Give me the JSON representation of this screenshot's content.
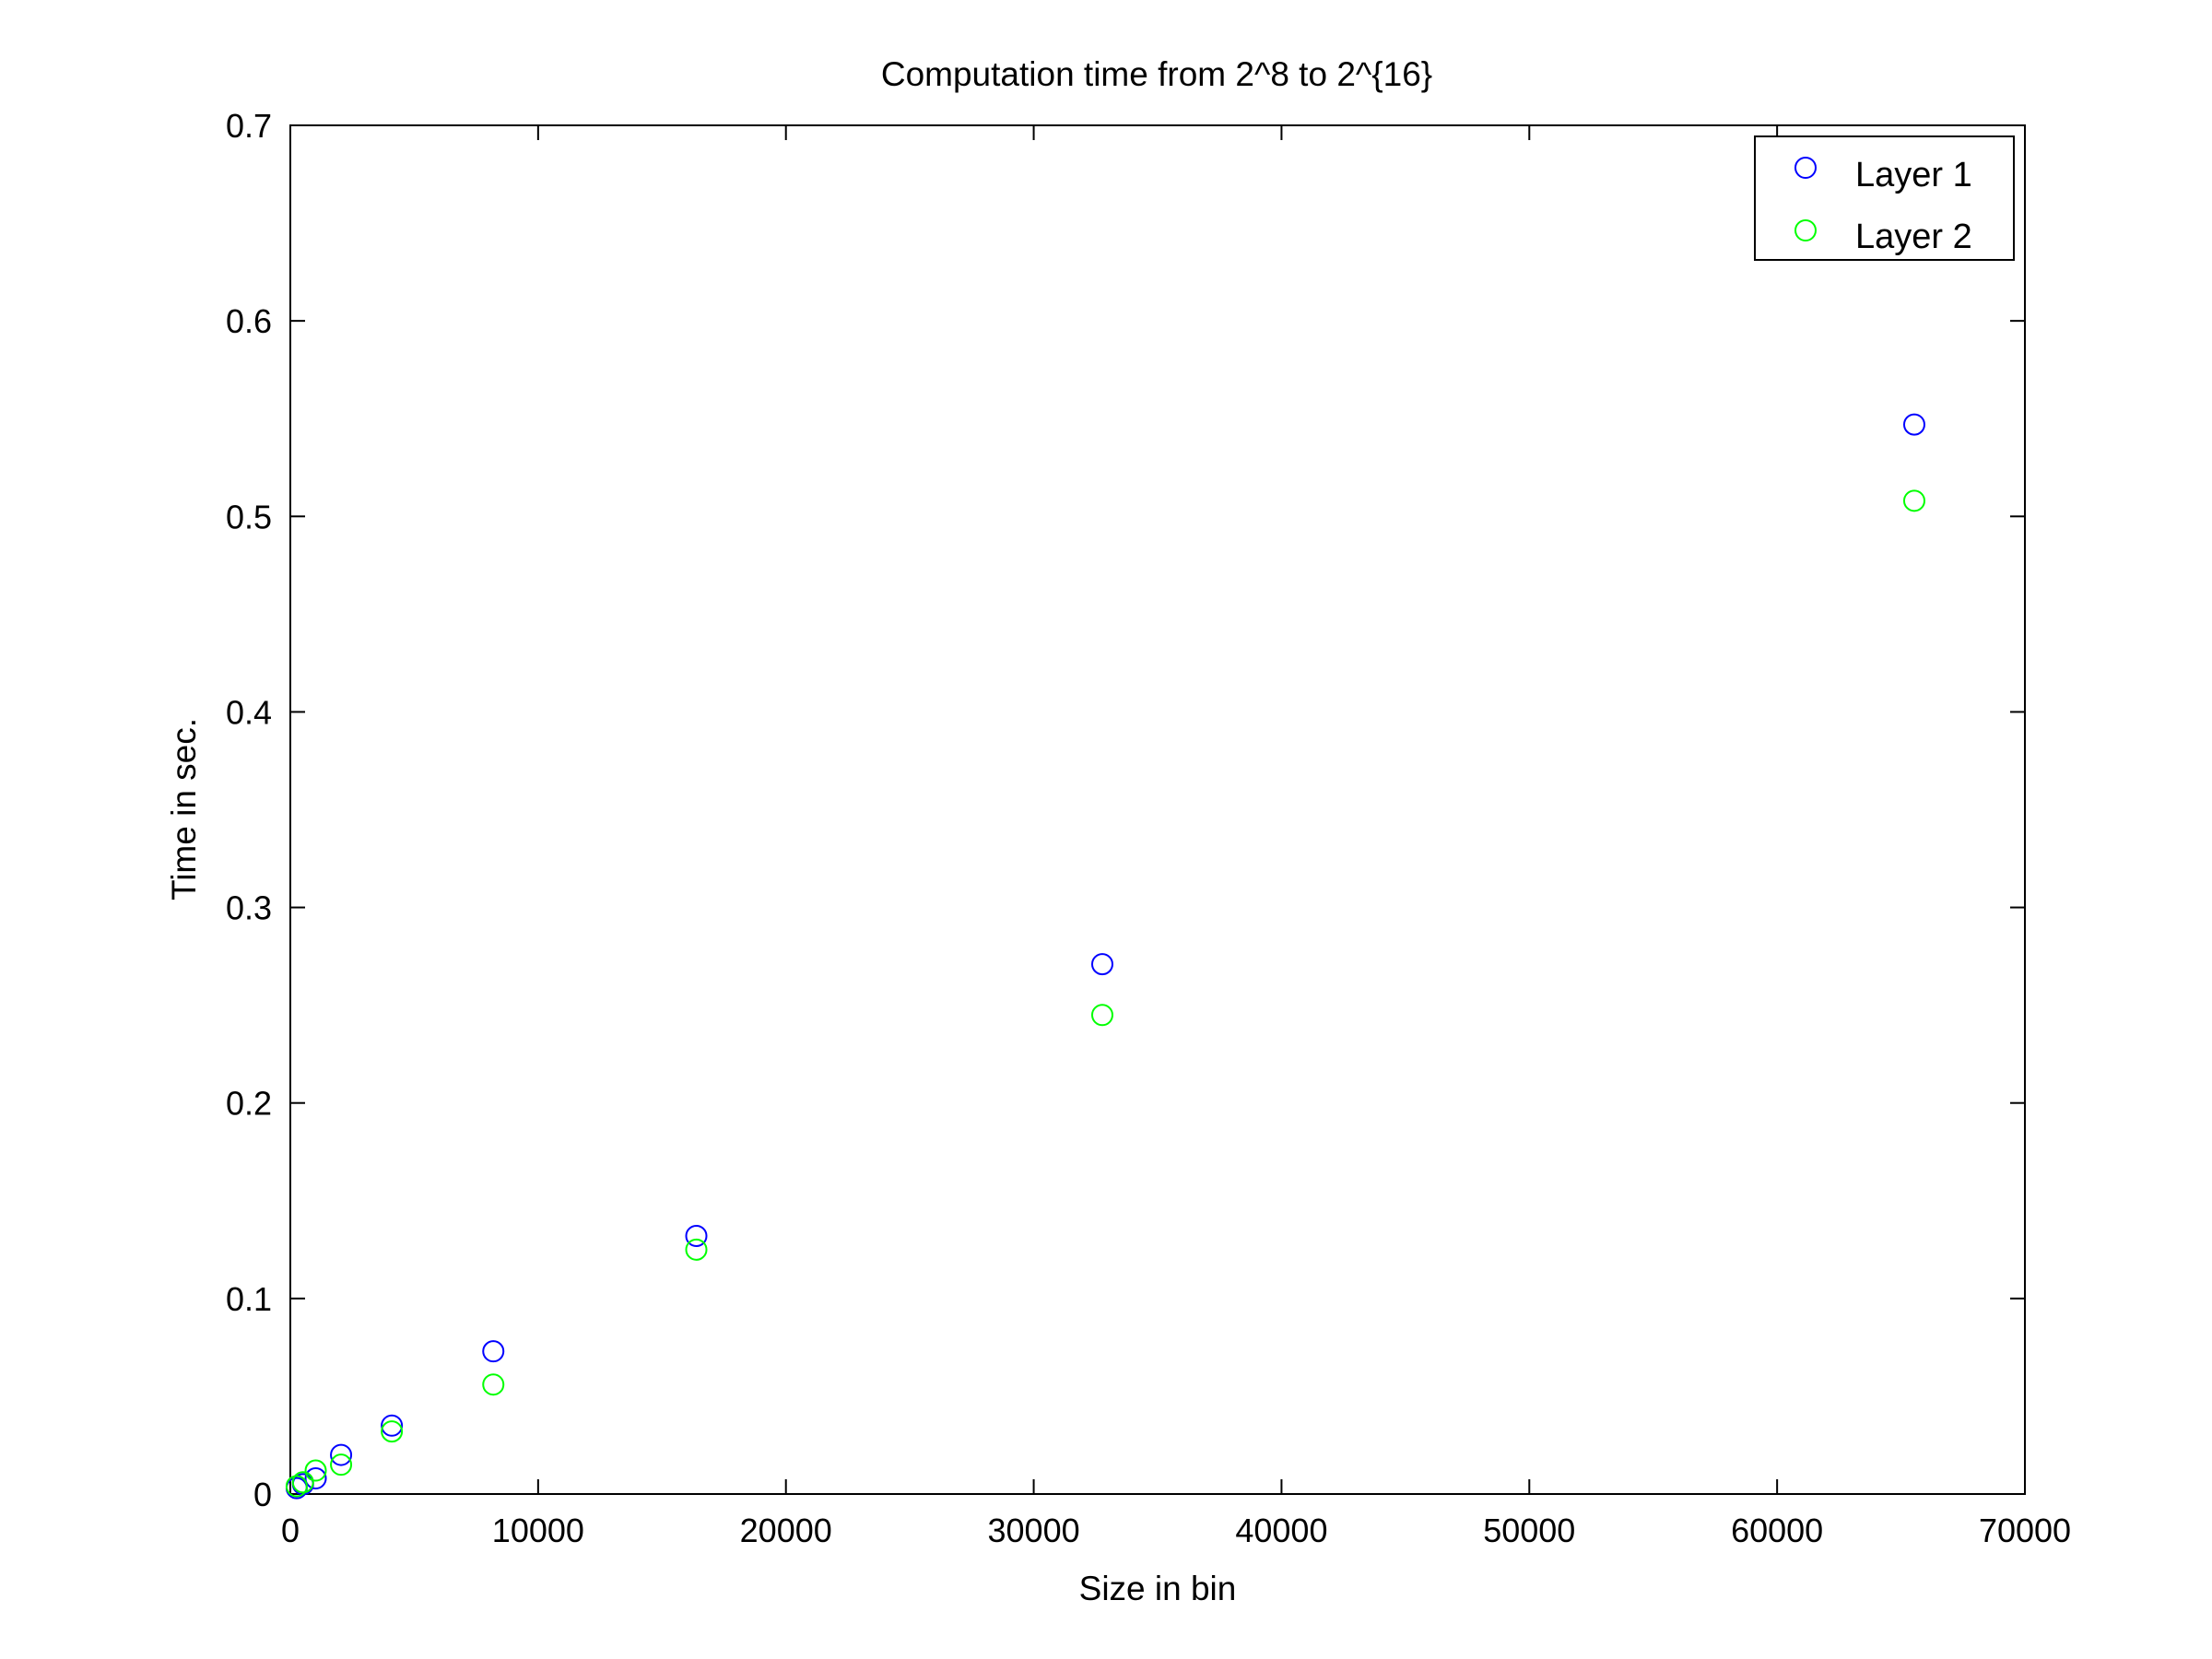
{
  "chart_data": {
    "type": "scatter",
    "title": "Computation time from 2^8 to 2^{16}",
    "xlabel": "Size in bin",
    "ylabel": "Time in sec.",
    "xlim": [
      0,
      70000
    ],
    "ylim": [
      0,
      0.7
    ],
    "xticks": [
      0,
      10000,
      20000,
      30000,
      40000,
      50000,
      60000,
      70000
    ],
    "yticks": [
      0,
      0.1,
      0.2,
      0.3,
      0.4,
      0.5,
      0.6,
      0.7
    ],
    "xtick_labels": [
      "0",
      "10000",
      "20000",
      "30000",
      "40000",
      "50000",
      "60000",
      "70000"
    ],
    "ytick_labels": [
      "0",
      "0.1",
      "0.2",
      "0.3",
      "0.4",
      "0.5",
      "0.6",
      "0.7"
    ],
    "grid": false,
    "legend_position": "top-right",
    "marker": "open-circle",
    "series": [
      {
        "name": "Layer 1",
        "color": "#0000ff",
        "x": [
          256,
          512,
          1024,
          2048,
          4096,
          8192,
          16384,
          32768,
          65536
        ],
        "y": [
          0.003,
          0.005,
          0.008,
          0.02,
          0.035,
          0.073,
          0.132,
          0.271,
          0.547
        ]
      },
      {
        "name": "Layer 2",
        "color": "#00ff00",
        "x": [
          256,
          512,
          1024,
          2048,
          4096,
          8192,
          16384,
          32768,
          65536
        ],
        "y": [
          0.004,
          0.006,
          0.012,
          0.015,
          0.032,
          0.056,
          0.125,
          0.245,
          0.508
        ]
      }
    ]
  }
}
